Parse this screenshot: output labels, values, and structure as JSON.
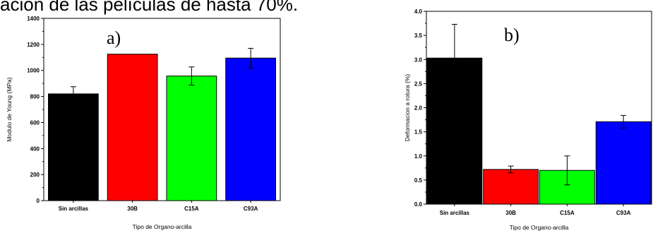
{
  "caption": "ación de las películas de hasta 70%.",
  "chart_data": [
    {
      "type": "bar",
      "panel_label": "a)",
      "categories": [
        "Sin arcillas",
        "30B",
        "C15A",
        "C93A"
      ],
      "values": [
        820,
        1125,
        957,
        1095
      ],
      "errors": [
        55,
        0,
        70,
        75
      ],
      "colors": [
        "#000000",
        "#ff0000",
        "#00ff00",
        "#0000ff"
      ],
      "xlabel": "Tipo de Organo-arcilla",
      "ylabel": "Modulo de Young (MPa)",
      "ylim": [
        0,
        1400
      ],
      "yticks": [
        0,
        200,
        400,
        600,
        800,
        1000,
        1200,
        1400
      ],
      "ytick_labels": [
        "0",
        "200",
        "400",
        "600",
        "800",
        "1000",
        "1200",
        "1400"
      ],
      "grid": false
    },
    {
      "type": "bar",
      "panel_label": "b)",
      "categories": [
        "Sin arcillas",
        "30B",
        "C15A",
        "C93A"
      ],
      "values": [
        3.03,
        0.72,
        0.7,
        1.71
      ],
      "errors": [
        0.7,
        0.07,
        0.3,
        0.13
      ],
      "colors": [
        "#000000",
        "#ff0000",
        "#00ff00",
        "#0000ff"
      ],
      "xlabel": "Tipo de Organo-arcilla",
      "ylabel": "Deformacion a rotura (%)",
      "ylim": [
        0,
        4
      ],
      "yticks": [
        0,
        0.5,
        1,
        1.5,
        2,
        2.5,
        3,
        3.5,
        4
      ],
      "ytick_labels": [
        "0.0",
        "0.5",
        "1.0",
        "1.5",
        "2.0",
        "2.5",
        "3.0",
        "3.5",
        "4.0"
      ],
      "grid": false
    }
  ]
}
